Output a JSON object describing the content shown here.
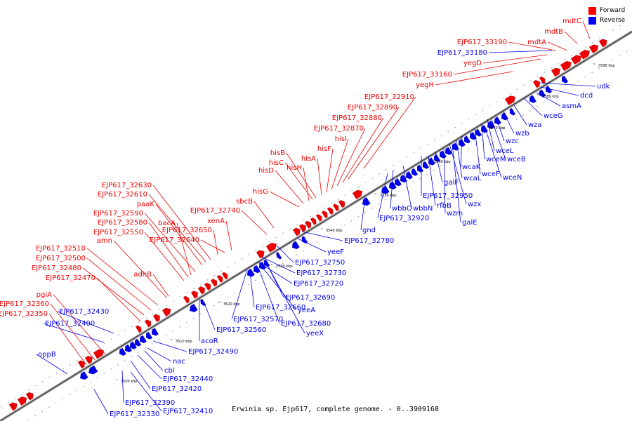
{
  "caption": "Erwinia sp. Ejp617, complete genome. - 0..3909168",
  "legend": {
    "forward": {
      "label": "Forward",
      "color": "#ff0000"
    },
    "reverse": {
      "label": "Reverse",
      "color": "#0000ff"
    }
  },
  "colors": {
    "forward": "#ee0000",
    "reverse": "#0000ee",
    "line": "#666666",
    "backbone": "#555555"
  },
  "ticks": [
    "3500 kbp",
    "3510 kbp",
    "3520 kbp",
    "3530 kbp",
    "3540 kbp",
    "3550 kbp",
    "3560 kbp",
    "3570 kbp",
    "3580 kbp",
    "3590 kbp"
  ],
  "forward_labels": [
    "mdtC",
    "mdtB",
    "mdtA",
    "EJP617_33190",
    "yegD",
    "EJP617_33160",
    "yegH",
    "EJP617_32910",
    "EJP617_32890",
    "EJP617_32880",
    "EJP617_32870",
    "hisI",
    "hisF",
    "hisA",
    "hisB",
    "hisC",
    "hisH",
    "hisD",
    "hisG",
    "sbcB",
    "EJP617_32740",
    "xenA",
    "EJP617_32650",
    "EJP617_32630",
    "EJP617_32610",
    "paaK",
    "EJP617_32590",
    "bacA",
    "EJP617_32580",
    "EJP617_32550",
    "EJP617_32640",
    "amn",
    "EJP617_32510",
    "EJP617_32500",
    "EJP617_32480",
    "adhB",
    "EJP617_32470",
    "pgiA",
    "EJP617_32360",
    "EJP617_32350"
  ],
  "reverse_labels": [
    "EJP617_33180",
    "udk",
    "dcd",
    "asmA",
    "wceG",
    "wza",
    "wzb",
    "wzc",
    "wceL",
    "wceM",
    "wceB",
    "wcaK",
    "wceF",
    "wceN",
    "wcaL",
    "galF",
    "EJP617_32950",
    "wzx",
    "rfbB",
    "wzm",
    "galE",
    "wbbN",
    "wbbO",
    "EJP617_32920",
    "gnd",
    "EJP617_32780",
    "yeeF",
    "EJP617_32750",
    "EJP617_32730",
    "EJP617_32720",
    "EJP617_32690",
    "yeeA",
    "EJP617_32660",
    "EJP617_32680",
    "yeeX",
    "EJP617_32570",
    "EJP617_32560",
    "acoR",
    "EJP617_32490",
    "EJP617_32430",
    "EJP617_32400",
    "nac",
    "cbl",
    "EJP617_32440",
    "EJP617_32420",
    "EJP617_32390",
    "EJP617_32330",
    "EJP617_32410",
    "oppB"
  ]
}
